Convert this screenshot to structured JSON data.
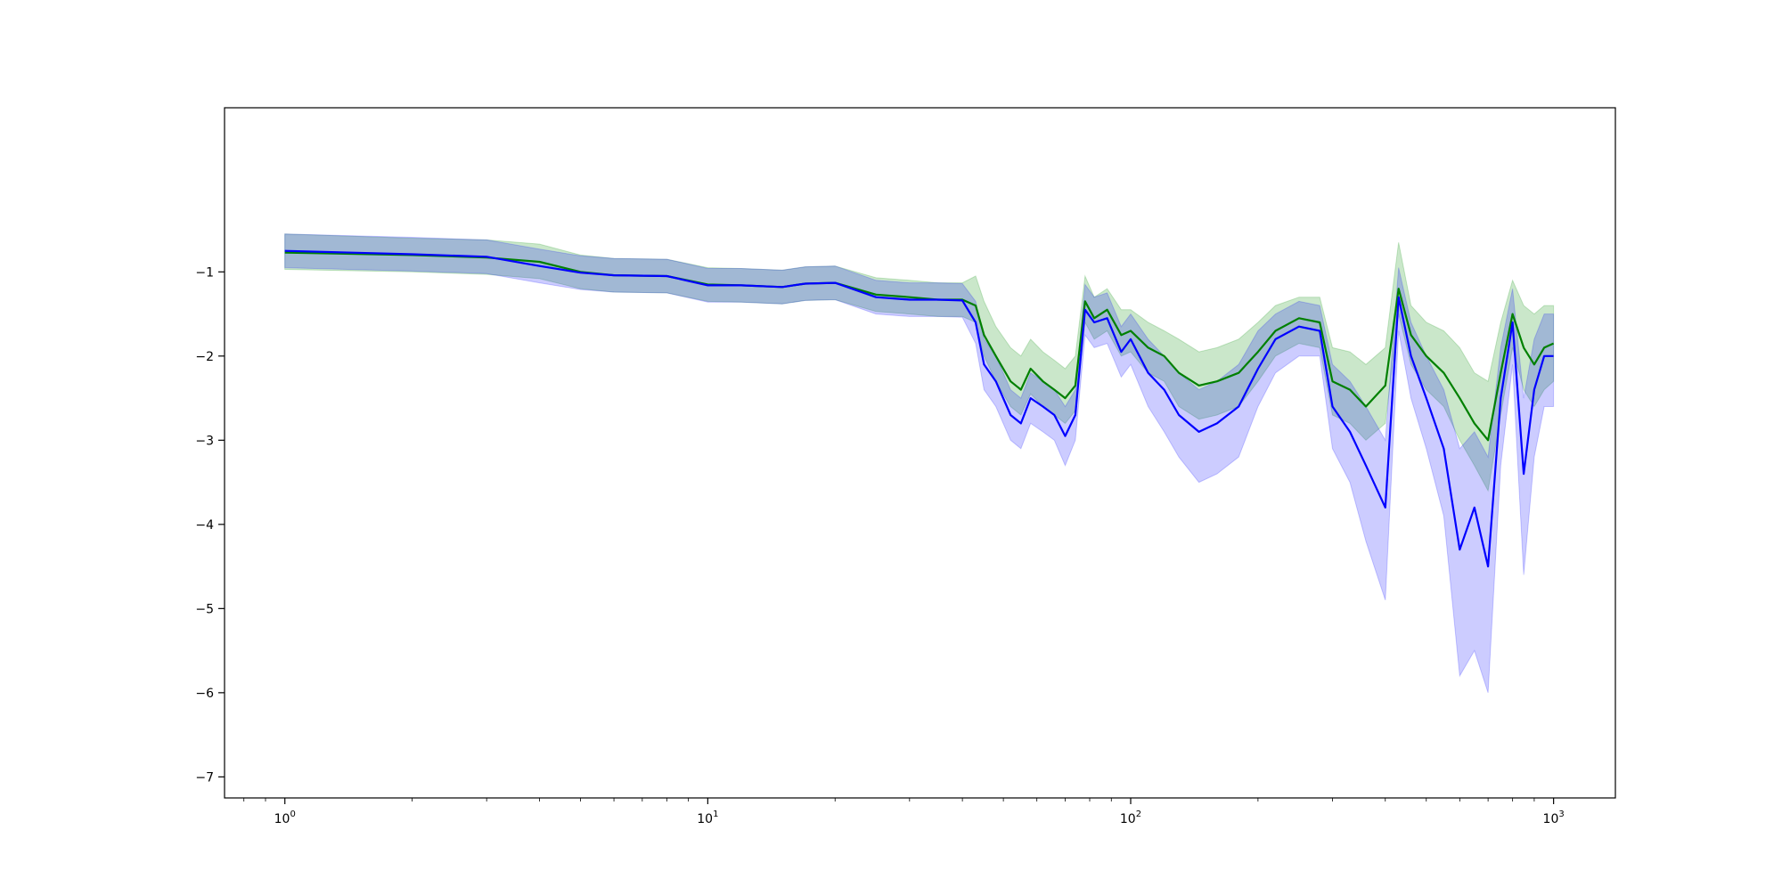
{
  "chart_data": {
    "type": "line",
    "title": "",
    "xlabel": "",
    "ylabel": "",
    "xscale": "log",
    "xlim": [
      0.72,
      1400
    ],
    "ylim": [
      -7.25,
      0.95
    ],
    "grid": false,
    "legend": "none",
    "x_ticks": [
      {
        "value": 1,
        "base": "10",
        "exp": "0"
      },
      {
        "value": 10,
        "base": "10",
        "exp": "1"
      },
      {
        "value": 100,
        "base": "10",
        "exp": "2"
      },
      {
        "value": 1000,
        "base": "10",
        "exp": "3"
      }
    ],
    "y_ticks": [
      {
        "value": -1,
        "label": "−1"
      },
      {
        "value": -2,
        "label": "−2"
      },
      {
        "value": -3,
        "label": "−3"
      },
      {
        "value": -4,
        "label": "−4"
      },
      {
        "value": -5,
        "label": "−5"
      },
      {
        "value": -6,
        "label": "−6"
      },
      {
        "value": -7,
        "label": "−7"
      }
    ],
    "series": [
      {
        "color": "#008000",
        "band_color": "#2ca02c",
        "band_opacity": 0.25,
        "points": [
          [
            1,
            -0.77,
            -0.97,
            -0.55
          ],
          [
            2,
            -0.8,
            -1.0,
            -0.6
          ],
          [
            3,
            -0.83,
            -1.03,
            -0.62
          ],
          [
            4,
            -0.88,
            -1.08,
            -0.67
          ],
          [
            5,
            -1.0,
            -1.2,
            -0.8
          ],
          [
            6,
            -1.04,
            -1.24,
            -0.84
          ],
          [
            8,
            -1.05,
            -1.25,
            -0.85
          ],
          [
            10,
            -1.15,
            -1.35,
            -0.95
          ],
          [
            12,
            -1.16,
            -1.36,
            -0.96
          ],
          [
            15,
            -1.18,
            -1.38,
            -0.98
          ],
          [
            17,
            -1.14,
            -1.34,
            -0.94
          ],
          [
            20,
            -1.13,
            -1.33,
            -0.93
          ],
          [
            25,
            -1.27,
            -1.47,
            -1.07
          ],
          [
            30,
            -1.3,
            -1.5,
            -1.1
          ],
          [
            35,
            -1.33,
            -1.53,
            -1.13
          ],
          [
            40,
            -1.33,
            -1.53,
            -1.13
          ],
          [
            43,
            -1.4,
            -1.6,
            -1.05
          ],
          [
            45,
            -1.75,
            -2.0,
            -1.35
          ],
          [
            48,
            -2.0,
            -2.3,
            -1.65
          ],
          [
            52,
            -2.3,
            -2.6,
            -1.9
          ],
          [
            55,
            -2.4,
            -2.7,
            -2.0
          ],
          [
            58,
            -2.15,
            -2.45,
            -1.8
          ],
          [
            62,
            -2.3,
            -2.6,
            -1.95
          ],
          [
            66,
            -2.4,
            -2.7,
            -2.05
          ],
          [
            70,
            -2.5,
            -2.8,
            -2.15
          ],
          [
            74,
            -2.35,
            -2.65,
            -2.0
          ],
          [
            78,
            -1.35,
            -1.6,
            -1.05
          ],
          [
            82,
            -1.55,
            -1.8,
            -1.3
          ],
          [
            88,
            -1.45,
            -1.7,
            -1.2
          ],
          [
            95,
            -1.75,
            -2.0,
            -1.45
          ],
          [
            100,
            -1.7,
            -1.95,
            -1.45
          ],
          [
            110,
            -1.9,
            -2.2,
            -1.6
          ],
          [
            120,
            -2.0,
            -2.3,
            -1.7
          ],
          [
            130,
            -2.2,
            -2.6,
            -1.8
          ],
          [
            145,
            -2.35,
            -2.75,
            -1.95
          ],
          [
            160,
            -2.3,
            -2.7,
            -1.9
          ],
          [
            180,
            -2.2,
            -2.6,
            -1.8
          ],
          [
            200,
            -1.95,
            -2.3,
            -1.6
          ],
          [
            220,
            -1.7,
            -2.0,
            -1.4
          ],
          [
            250,
            -1.55,
            -1.85,
            -1.3
          ],
          [
            280,
            -1.6,
            -1.9,
            -1.3
          ],
          [
            300,
            -2.3,
            -2.7,
            -1.9
          ],
          [
            330,
            -2.4,
            -2.8,
            -1.95
          ],
          [
            360,
            -2.6,
            -3.0,
            -2.1
          ],
          [
            400,
            -2.35,
            -2.8,
            -1.9
          ],
          [
            430,
            -1.2,
            -1.5,
            -0.65
          ],
          [
            460,
            -1.75,
            -2.1,
            -1.4
          ],
          [
            500,
            -2.0,
            -2.4,
            -1.6
          ],
          [
            550,
            -2.2,
            -2.6,
            -1.7
          ],
          [
            600,
            -2.5,
            -3.0,
            -1.9
          ],
          [
            650,
            -2.8,
            -3.3,
            -2.2
          ],
          [
            700,
            -3.0,
            -3.6,
            -2.3
          ],
          [
            750,
            -2.2,
            -2.7,
            -1.6
          ],
          [
            800,
            -1.5,
            -1.9,
            -1.1
          ],
          [
            850,
            -1.9,
            -2.4,
            -1.4
          ],
          [
            900,
            -2.1,
            -2.6,
            -1.5
          ],
          [
            950,
            -1.9,
            -2.4,
            -1.4
          ],
          [
            1000,
            -1.85,
            -2.3,
            -1.4
          ]
        ]
      },
      {
        "color": "#0000ff",
        "band_color": "#0000ff",
        "band_opacity": 0.2,
        "points": [
          [
            1,
            -0.75,
            -0.95,
            -0.55
          ],
          [
            2,
            -0.79,
            -0.99,
            -0.59
          ],
          [
            3,
            -0.82,
            -1.02,
            -0.62
          ],
          [
            4,
            -0.93,
            -1.13,
            -0.73
          ],
          [
            5,
            -1.01,
            -1.21,
            -0.81
          ],
          [
            6,
            -1.04,
            -1.24,
            -0.84
          ],
          [
            8,
            -1.05,
            -1.25,
            -0.85
          ],
          [
            10,
            -1.16,
            -1.36,
            -0.96
          ],
          [
            12,
            -1.16,
            -1.36,
            -0.96
          ],
          [
            15,
            -1.18,
            -1.38,
            -0.98
          ],
          [
            17,
            -1.14,
            -1.34,
            -0.94
          ],
          [
            20,
            -1.13,
            -1.33,
            -0.93
          ],
          [
            25,
            -1.3,
            -1.5,
            -1.1
          ],
          [
            30,
            -1.33,
            -1.53,
            -1.13
          ],
          [
            35,
            -1.33,
            -1.53,
            -1.13
          ],
          [
            40,
            -1.34,
            -1.54,
            -1.14
          ],
          [
            43,
            -1.6,
            -1.85,
            -1.35
          ],
          [
            45,
            -2.1,
            -2.4,
            -1.8
          ],
          [
            48,
            -2.3,
            -2.6,
            -2.0
          ],
          [
            52,
            -2.7,
            -3.0,
            -2.4
          ],
          [
            55,
            -2.8,
            -3.1,
            -2.5
          ],
          [
            58,
            -2.5,
            -2.8,
            -2.2
          ],
          [
            62,
            -2.6,
            -2.9,
            -2.3
          ],
          [
            66,
            -2.7,
            -3.0,
            -2.4
          ],
          [
            70,
            -2.95,
            -3.3,
            -2.6
          ],
          [
            74,
            -2.7,
            -3.0,
            -2.4
          ],
          [
            78,
            -1.45,
            -1.75,
            -1.15
          ],
          [
            82,
            -1.6,
            -1.9,
            -1.3
          ],
          [
            88,
            -1.55,
            -1.85,
            -1.25
          ],
          [
            95,
            -1.95,
            -2.25,
            -1.65
          ],
          [
            100,
            -1.8,
            -2.1,
            -1.5
          ],
          [
            110,
            -2.2,
            -2.6,
            -1.8
          ],
          [
            120,
            -2.4,
            -2.9,
            -2.0
          ],
          [
            130,
            -2.7,
            -3.2,
            -2.2
          ],
          [
            145,
            -2.9,
            -3.5,
            -2.4
          ],
          [
            160,
            -2.8,
            -3.4,
            -2.3
          ],
          [
            180,
            -2.6,
            -3.2,
            -2.1
          ],
          [
            200,
            -2.15,
            -2.6,
            -1.7
          ],
          [
            220,
            -1.8,
            -2.2,
            -1.5
          ],
          [
            250,
            -1.65,
            -2.0,
            -1.35
          ],
          [
            280,
            -1.7,
            -2.0,
            -1.4
          ],
          [
            300,
            -2.6,
            -3.1,
            -2.1
          ],
          [
            330,
            -2.9,
            -3.5,
            -2.3
          ],
          [
            360,
            -3.3,
            -4.2,
            -2.6
          ],
          [
            400,
            -3.8,
            -4.9,
            -3.0
          ],
          [
            430,
            -1.3,
            -1.7,
            -0.95
          ],
          [
            460,
            -2.0,
            -2.5,
            -1.6
          ],
          [
            500,
            -2.5,
            -3.1,
            -2.0
          ],
          [
            550,
            -3.1,
            -3.9,
            -2.4
          ],
          [
            600,
            -4.3,
            -5.8,
            -3.1
          ],
          [
            650,
            -3.8,
            -5.5,
            -2.9
          ],
          [
            700,
            -4.5,
            -6.0,
            -3.2
          ],
          [
            750,
            -2.5,
            -3.3,
            -1.9
          ],
          [
            800,
            -1.6,
            -2.1,
            -1.2
          ],
          [
            850,
            -3.4,
            -4.6,
            -2.5
          ],
          [
            900,
            -2.4,
            -3.2,
            -1.8
          ],
          [
            950,
            -2.0,
            -2.6,
            -1.5
          ],
          [
            1000,
            -2.0,
            -2.6,
            -1.5
          ]
        ]
      }
    ]
  }
}
